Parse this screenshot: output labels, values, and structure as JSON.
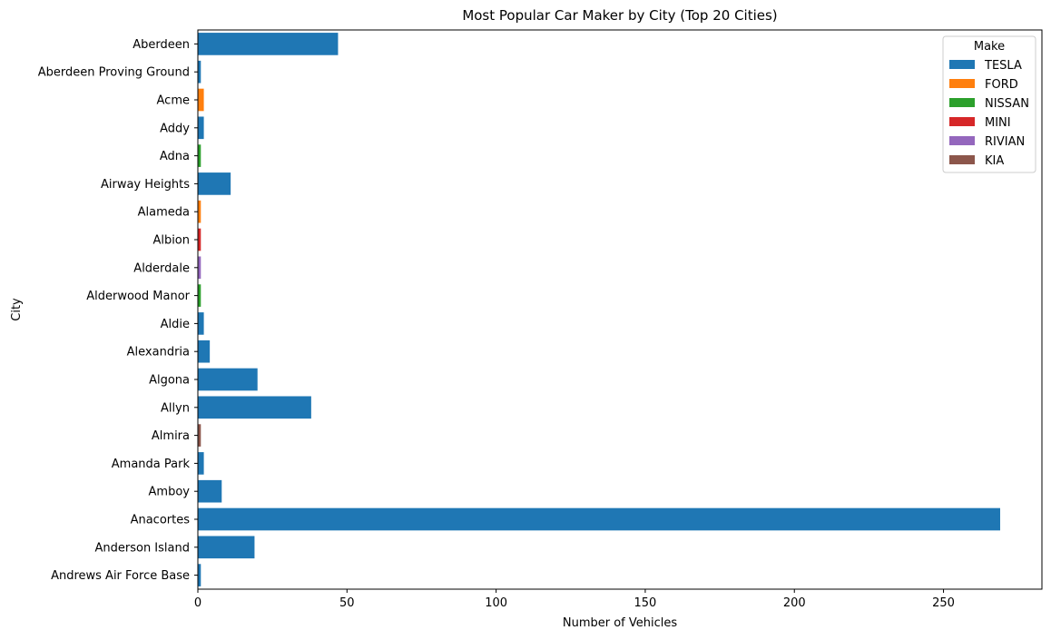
{
  "chart_data": {
    "type": "bar",
    "orientation": "horizontal",
    "title": "Most Popular Car Maker by City (Top 20 Cities)",
    "xlabel": "Number of Vehicles",
    "ylabel": "City",
    "xlim": [
      0,
      283
    ],
    "xticks": [
      0,
      50,
      100,
      150,
      200,
      250
    ],
    "grid": false,
    "legend": {
      "title": "Make",
      "placement": "top-right",
      "entries": [
        {
          "name": "TESLA",
          "color": "#1f77b4"
        },
        {
          "name": "FORD",
          "color": "#ff7f0e"
        },
        {
          "name": "NISSAN",
          "color": "#2ca02c"
        },
        {
          "name": "MINI",
          "color": "#d62728"
        },
        {
          "name": "RIVIAN",
          "color": "#9467bd"
        },
        {
          "name": "KIA",
          "color": "#8c564b"
        }
      ]
    },
    "bars": [
      {
        "city": "Aberdeen",
        "make": "TESLA",
        "value": 47
      },
      {
        "city": "Aberdeen Proving Ground",
        "make": "TESLA",
        "value": 1
      },
      {
        "city": "Acme",
        "make": "FORD",
        "value": 2
      },
      {
        "city": "Addy",
        "make": "TESLA",
        "value": 2
      },
      {
        "city": "Adna",
        "make": "NISSAN",
        "value": 1
      },
      {
        "city": "Airway Heights",
        "make": "TESLA",
        "value": 11
      },
      {
        "city": "Alameda",
        "make": "FORD",
        "value": 1
      },
      {
        "city": "Albion",
        "make": "MINI",
        "value": 1
      },
      {
        "city": "Alderdale",
        "make": "RIVIAN",
        "value": 1
      },
      {
        "city": "Alderwood Manor",
        "make": "NISSAN",
        "value": 1
      },
      {
        "city": "Aldie",
        "make": "TESLA",
        "value": 2
      },
      {
        "city": "Alexandria",
        "make": "TESLA",
        "value": 4
      },
      {
        "city": "Algona",
        "make": "TESLA",
        "value": 20
      },
      {
        "city": "Allyn",
        "make": "TESLA",
        "value": 38
      },
      {
        "city": "Almira",
        "make": "KIA",
        "value": 1
      },
      {
        "city": "Amanda Park",
        "make": "TESLA",
        "value": 2
      },
      {
        "city": "Amboy",
        "make": "TESLA",
        "value": 8
      },
      {
        "city": "Anacortes",
        "make": "TESLA",
        "value": 269
      },
      {
        "city": "Anderson Island",
        "make": "TESLA",
        "value": 19
      },
      {
        "city": "Andrews Air Force Base",
        "make": "TESLA",
        "value": 1
      }
    ]
  }
}
